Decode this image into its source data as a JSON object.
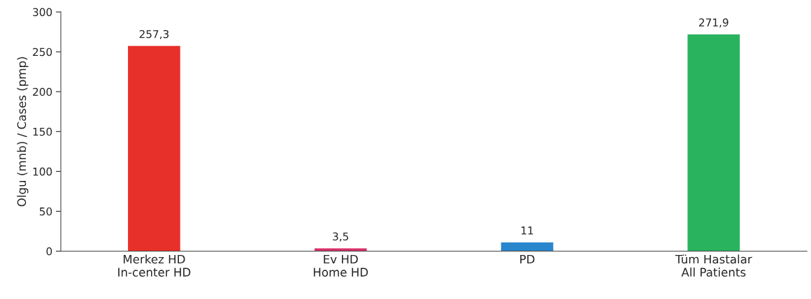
{
  "chart_data": {
    "type": "bar",
    "ylabel": "Olgu (mnb) / Cases (pmp)",
    "categories": [
      "Merkez HD\nIn-center HD",
      "Ev HD\nHome HD",
      "PD",
      "Tüm Hastalar\nAll Patients"
    ],
    "values": [
      257.3,
      3.5,
      11,
      271.9
    ],
    "colors": [
      "#e8302b",
      "#d8316a",
      "#2a86cc",
      "#2ab35e"
    ],
    "value_labels": [
      "257,3",
      "3,5",
      "11",
      "271,9"
    ],
    "ylim": [
      0,
      300
    ],
    "yticks": [
      0,
      50,
      100,
      150,
      200,
      250,
      300
    ],
    "grid": false
  }
}
